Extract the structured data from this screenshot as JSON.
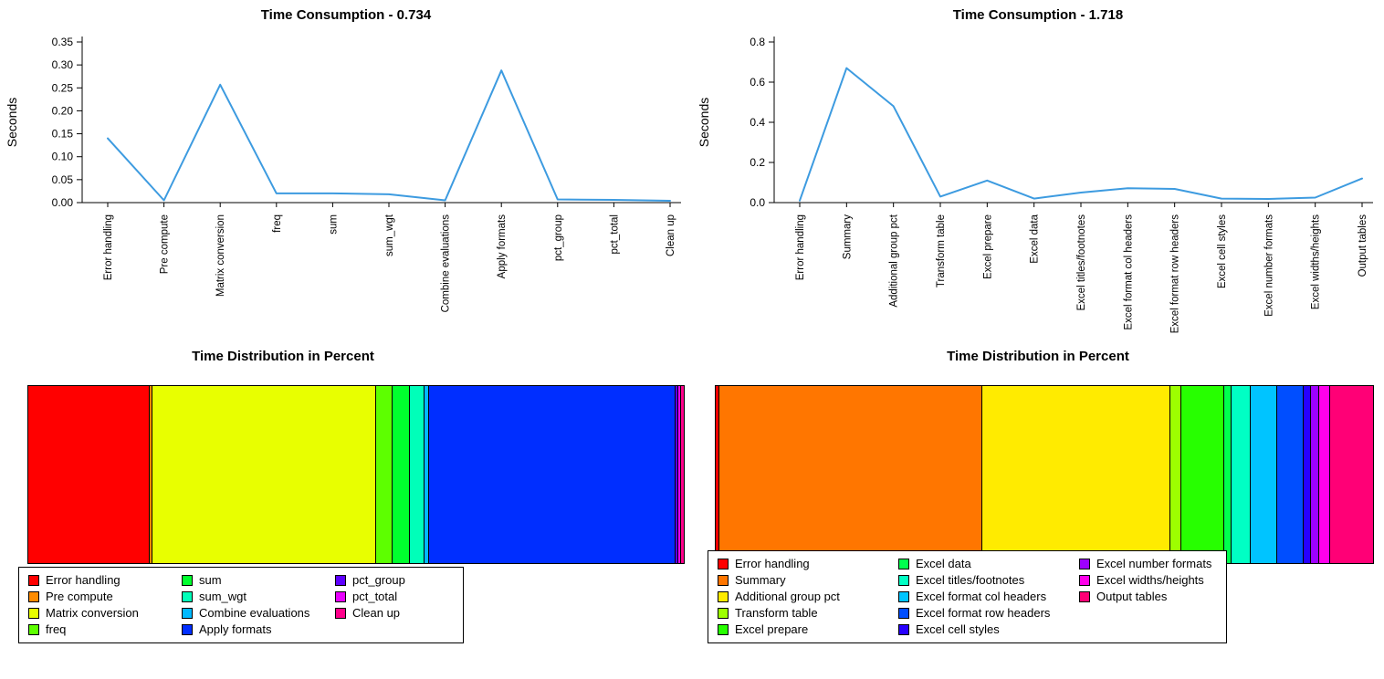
{
  "page": {
    "background": "#FFFFFF",
    "text_color": "#000000"
  },
  "chart_data": [
    {
      "type": "line",
      "title": "Time Consumption - 0.734",
      "xlabel": "",
      "ylabel": "Seconds",
      "ylim": [
        0,
        0.35
      ],
      "yticks": [
        "0.00",
        "0.05",
        "0.10",
        "0.15",
        "0.20",
        "0.25",
        "0.30",
        "0.35"
      ],
      "grid": false,
      "legend_position": "none",
      "line_color": "#3D9BE0",
      "categories": [
        "Error handling",
        "Pre compute",
        "Matrix conversion",
        "freq",
        "sum",
        "sum_wgt",
        "Combine evaluations",
        "Apply formats",
        "pct_group",
        "pct_total",
        "Clean up"
      ],
      "values": [
        0.14,
        0.005,
        0.257,
        0.02,
        0.02,
        0.018,
        0.005,
        0.288,
        0.007,
        0.006,
        0.004
      ]
    },
    {
      "type": "line",
      "title": "Time Consumption - 1.718",
      "xlabel": "",
      "ylabel": "Seconds",
      "ylim": [
        0,
        0.8
      ],
      "yticks": [
        "0.0",
        "0.2",
        "0.4",
        "0.6",
        "0.8"
      ],
      "grid": false,
      "legend_position": "none",
      "line_color": "#3D9BE0",
      "categories": [
        "Error handling",
        "Summary",
        "Additional group pct",
        "Transform table",
        "Excel prepare",
        "Excel data",
        "Excel titles/footnotes",
        "Excel format col headers",
        "Excel format row headers",
        "Excel cell styles",
        "Excel number formats",
        "Excel widths/heights",
        "Output tables"
      ],
      "values": [
        0.01,
        0.67,
        0.48,
        0.03,
        0.11,
        0.02,
        0.05,
        0.072,
        0.068,
        0.02,
        0.018,
        0.025,
        0.12
      ]
    },
    {
      "type": "stacked-bar",
      "title": "Time Distribution in Percent",
      "orientation": "horizontal",
      "legend_position": "below-left",
      "segments": [
        {
          "label": "Error handling",
          "color": "#FF0000",
          "pct": 18.5
        },
        {
          "label": "Pre compute",
          "color": "#FF8B00",
          "pct": 0.5
        },
        {
          "label": "Matrix conversion",
          "color": "#E8FF00",
          "pct": 34.0
        },
        {
          "label": "freq",
          "color": "#5DFF00",
          "pct": 2.6
        },
        {
          "label": "sum",
          "color": "#00FF2E",
          "pct": 2.6
        },
        {
          "label": "sum_wgt",
          "color": "#00FFB9",
          "pct": 2.3
        },
        {
          "label": "Combine evaluations",
          "color": "#00B9FF",
          "pct": 0.7
        },
        {
          "label": "Apply formats",
          "color": "#002EFF",
          "pct": 37.6
        },
        {
          "label": "pct_group",
          "color": "#5D00FF",
          "pct": 0.4
        },
        {
          "label": "pct_total",
          "color": "#E800FF",
          "pct": 0.4
        },
        {
          "label": "Clean up",
          "color": "#FF008B",
          "pct": 0.4
        }
      ]
    },
    {
      "type": "stacked-bar",
      "title": "Time Distribution in Percent",
      "orientation": "horizontal",
      "legend_position": "below-left",
      "segments": [
        {
          "label": "Error handling",
          "color": "#FF0000",
          "pct": 0.6
        },
        {
          "label": "Summary",
          "color": "#FF7600",
          "pct": 40.0
        },
        {
          "label": "Additional group pct",
          "color": "#FFEB00",
          "pct": 28.6
        },
        {
          "label": "Transform table",
          "color": "#9DFF00",
          "pct": 1.7
        },
        {
          "label": "Excel prepare",
          "color": "#27FF00",
          "pct": 6.4
        },
        {
          "label": "Excel data",
          "color": "#00FF4E",
          "pct": 1.2
        },
        {
          "label": "Excel titles/footnotes",
          "color": "#00FFC4",
          "pct": 2.9
        },
        {
          "label": "Excel format col headers",
          "color": "#00C4FF",
          "pct": 4.0
        },
        {
          "label": "Excel format row headers",
          "color": "#004EFF",
          "pct": 4.0
        },
        {
          "label": "Excel cell styles",
          "color": "#2700FF",
          "pct": 1.2
        },
        {
          "label": "Excel number formats",
          "color": "#9D00FF",
          "pct": 1.2
        },
        {
          "label": "Excel widths/heights",
          "color": "#FF00EB",
          "pct": 1.7
        },
        {
          "label": "Output tables",
          "color": "#FF0076",
          "pct": 6.5
        }
      ]
    }
  ]
}
